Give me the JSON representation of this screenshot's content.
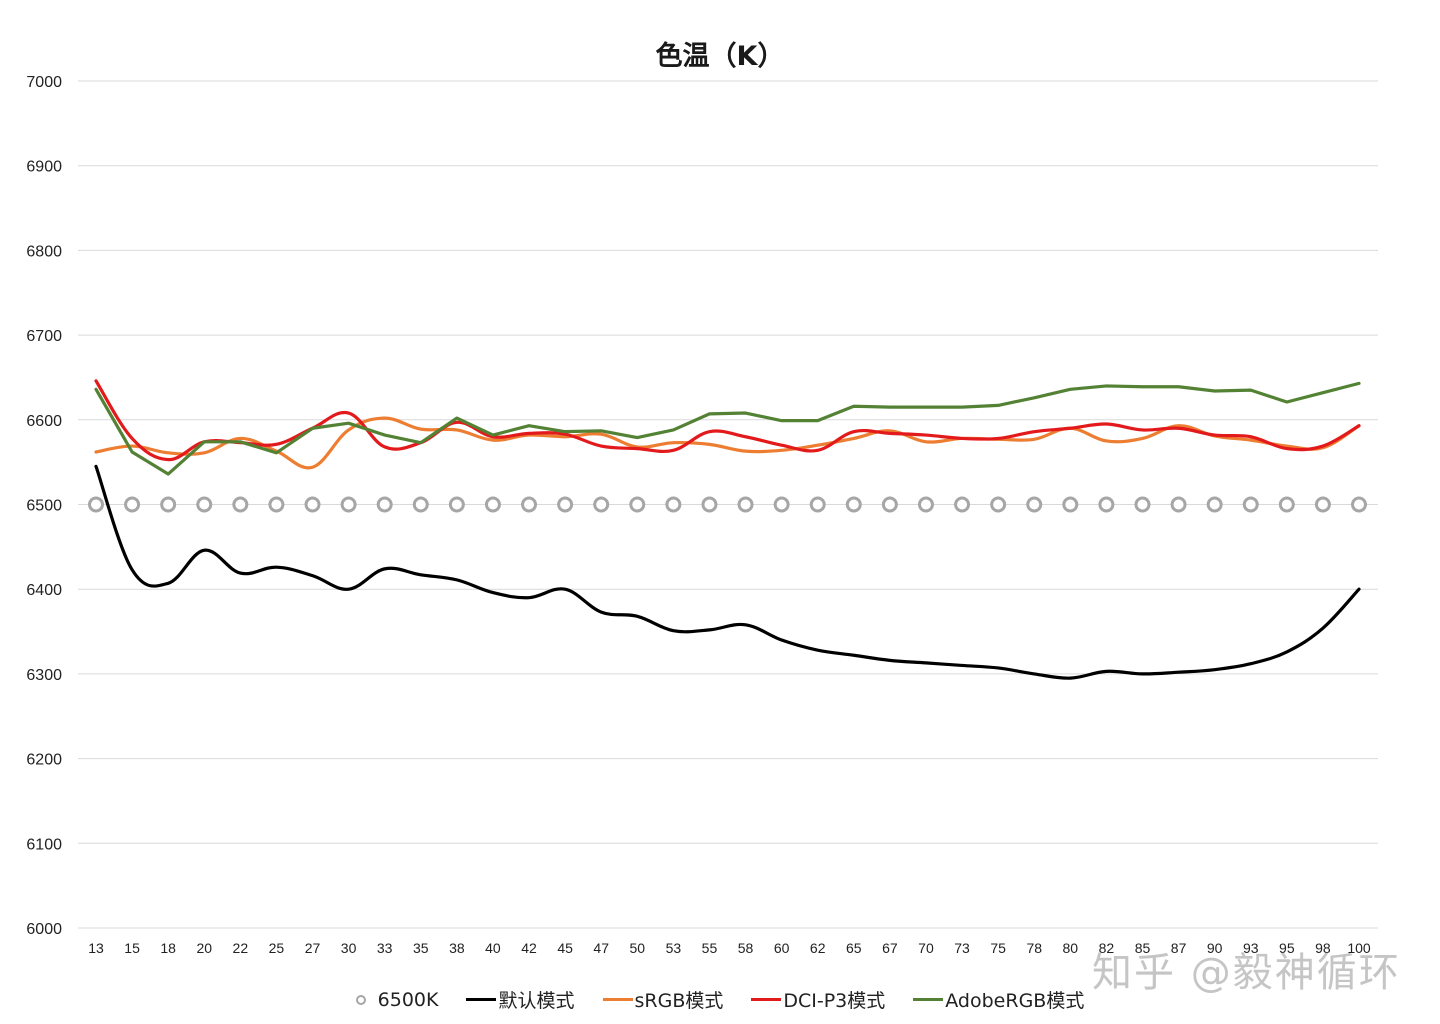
{
  "title": "色温（K）",
  "watermark": "知乎 @毅神循环",
  "legend": [
    {
      "label": "6500K",
      "color": "#a6a6a6",
      "type": "circle-marker"
    },
    {
      "label": "默认模式",
      "color": "#000000",
      "type": "line"
    },
    {
      "label": "sRGB模式",
      "color": "#ed7d31",
      "type": "line"
    },
    {
      "label": "DCI-P3模式",
      "color": "#e31a1c",
      "type": "line"
    },
    {
      "label": "AdobeRGB模式",
      "color": "#548235",
      "type": "line"
    }
  ],
  "chart_data": {
    "type": "line",
    "title": "色温（K）",
    "xlabel": "",
    "ylabel": "",
    "ylim": [
      6000,
      7000
    ],
    "yticks": [
      6000,
      6100,
      6200,
      6300,
      6400,
      6500,
      6600,
      6700,
      6800,
      6900,
      7000
    ],
    "grid": true,
    "legend_position": "bottom",
    "categories": [
      "13",
      "15",
      "18",
      "20",
      "22",
      "25",
      "27",
      "30",
      "33",
      "35",
      "38",
      "40",
      "42",
      "45",
      "47",
      "50",
      "53",
      "55",
      "58",
      "60",
      "62",
      "65",
      "67",
      "70",
      "73",
      "75",
      "78",
      "80",
      "82",
      "85",
      "87",
      "90",
      "93",
      "95",
      "98",
      "100"
    ],
    "series": [
      {
        "name": "6500K",
        "color": "#a6a6a6",
        "style": "marker-only",
        "values": [
          6500,
          6500,
          6500,
          6500,
          6500,
          6500,
          6500,
          6500,
          6500,
          6500,
          6500,
          6500,
          6500,
          6500,
          6500,
          6500,
          6500,
          6500,
          6500,
          6500,
          6500,
          6500,
          6500,
          6500,
          6500,
          6500,
          6500,
          6500,
          6500,
          6500,
          6500,
          6500,
          6500,
          6500,
          6500,
          6500
        ]
      },
      {
        "name": "默认模式",
        "color": "#000000",
        "style": "smooth",
        "values": [
          6545,
          6423,
          6407,
          6446,
          6419,
          6426,
          6416,
          6400,
          6424,
          6417,
          6411,
          6396,
          6390,
          6400,
          6373,
          6368,
          6351,
          6352,
          6358,
          6340,
          6328,
          6322,
          6316,
          6313,
          6310,
          6307,
          6300,
          6295,
          6303,
          6300,
          6302,
          6305,
          6312,
          6326,
          6354,
          6400
        ]
      },
      {
        "name": "sRGB模式",
        "color": "#ed7d31",
        "style": "smooth",
        "values": [
          6562,
          6569,
          6561,
          6561,
          6578,
          6563,
          6544,
          6588,
          6602,
          6589,
          6588,
          6576,
          6582,
          6580,
          6583,
          6568,
          6573,
          6571,
          6563,
          6564,
          6570,
          6578,
          6587,
          6574,
          6578,
          6577,
          6577,
          6590,
          6575,
          6578,
          6593,
          6581,
          6576,
          6569,
          6567,
          6593
        ]
      },
      {
        "name": "DCI-P3模式",
        "color": "#e31a1c",
        "style": "smooth",
        "values": [
          6646,
          6578,
          6553,
          6574,
          6573,
          6571,
          6590,
          6608,
          6568,
          6573,
          6597,
          6580,
          6584,
          6583,
          6569,
          6566,
          6564,
          6586,
          6580,
          6570,
          6564,
          6586,
          6584,
          6582,
          6578,
          6578,
          6586,
          6590,
          6595,
          6588,
          6590,
          6582,
          6580,
          6566,
          6569,
          6593
        ]
      },
      {
        "name": "AdobeRGB模式",
        "color": "#548235",
        "style": "straight",
        "values": [
          6636,
          6562,
          6536,
          6574,
          6574,
          6561,
          6590,
          6596,
          6582,
          6573,
          6602,
          6582,
          6593,
          6586,
          6587,
          6579,
          6588,
          6607,
          6608,
          6599,
          6599,
          6616,
          6615,
          6615,
          6615,
          6617,
          6626,
          6636,
          6640,
          6639,
          6639,
          6634,
          6635,
          6621,
          6632,
          6643
        ]
      }
    ]
  }
}
